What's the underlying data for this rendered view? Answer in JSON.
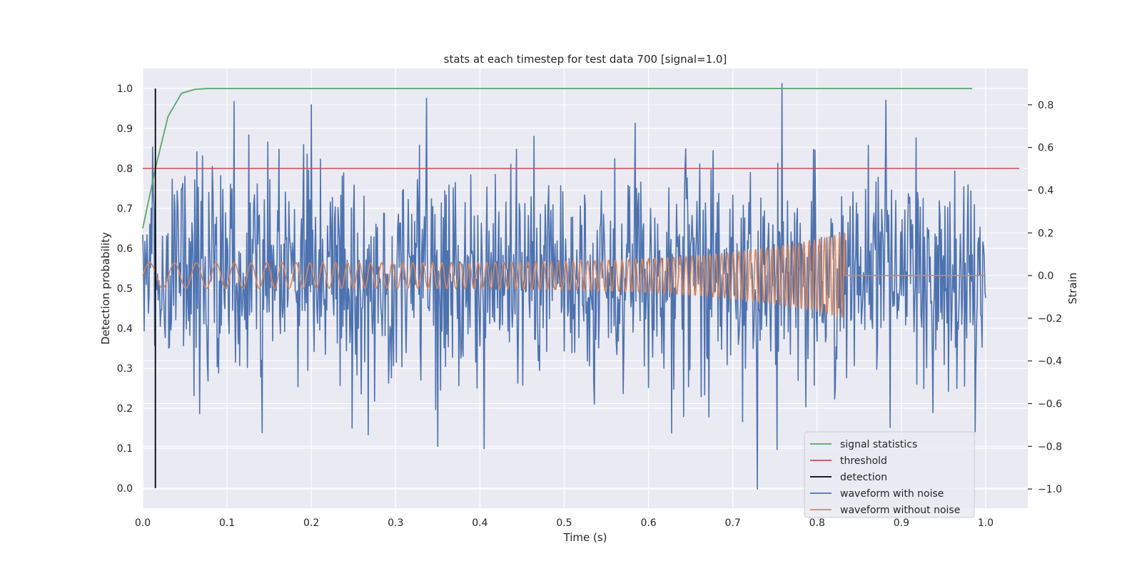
{
  "chart_data": {
    "type": "line",
    "title": "stats at each timestep for test data 700 [signal=1.0]",
    "xlabel": "Time (s)",
    "ylabel": "Detection probability",
    "y2label": "Strain",
    "xlim": [
      0.0,
      1.05
    ],
    "ylim": [
      -0.05,
      1.05
    ],
    "y2lim": [
      -1.09,
      0.97
    ],
    "xticks": [
      "0.0",
      "0.1",
      "0.2",
      "0.3",
      "0.4",
      "0.5",
      "0.6",
      "0.7",
      "0.8",
      "0.9",
      "1.0"
    ],
    "yticks": [
      "0.0",
      "0.1",
      "0.2",
      "0.3",
      "0.4",
      "0.5",
      "0.6",
      "0.7",
      "0.8",
      "0.9",
      "1.0"
    ],
    "y2ticks": [
      "−1.0",
      "−0.8",
      "−0.6",
      "−0.4",
      "−0.2",
      "0.0",
      "0.2",
      "0.4",
      "0.6",
      "0.8"
    ],
    "grid": true,
    "legend_position": "lower-right",
    "colors": {
      "signal_statistics": "#55a868",
      "threshold": "#c44e52",
      "detection": "#000000",
      "waveform_with_noise": "#4c72b0",
      "waveform_without_noise": "#dd8452",
      "plot_bg": "#eaeaf2",
      "grid": "#ffffff"
    },
    "series": [
      {
        "name": "signal statistics",
        "axis": "left",
        "x": [
          0.0,
          0.015,
          0.03,
          0.046,
          0.062,
          0.078,
          0.094,
          0.2,
          0.4,
          0.6,
          0.8,
          0.984
        ],
        "y": [
          0.65,
          0.8,
          0.93,
          0.988,
          0.998,
          1.0,
          1.0,
          1.0,
          1.0,
          1.0,
          1.0,
          1.0
        ]
      },
      {
        "name": "threshold",
        "axis": "left",
        "x": [
          0.0,
          1.04
        ],
        "y": [
          0.8,
          0.8
        ]
      },
      {
        "name": "detection",
        "axis": "left",
        "x": [
          0.015,
          0.015
        ],
        "y": [
          0.0,
          1.0
        ]
      },
      {
        "name": "waveform with noise",
        "axis": "right",
        "x_range": [
          0.0,
          1.0
        ],
        "approx_std": 0.25,
        "peaks": [
          {
            "x": 0.758,
            "y": 0.9
          },
          {
            "x": 0.2,
            "y": 0.8
          },
          {
            "x": 0.729,
            "y": -1.0
          },
          {
            "x": 0.35,
            "y": -0.8
          }
        ]
      },
      {
        "name": "waveform without noise",
        "axis": "right",
        "x_range": [
          0.0,
          0.833
        ],
        "start_amplitude": 0.06,
        "peak_amplitude": 0.2,
        "start_freq_hz": 30,
        "end_freq_hz": 170,
        "ringdown_until": 1.0
      }
    ]
  }
}
